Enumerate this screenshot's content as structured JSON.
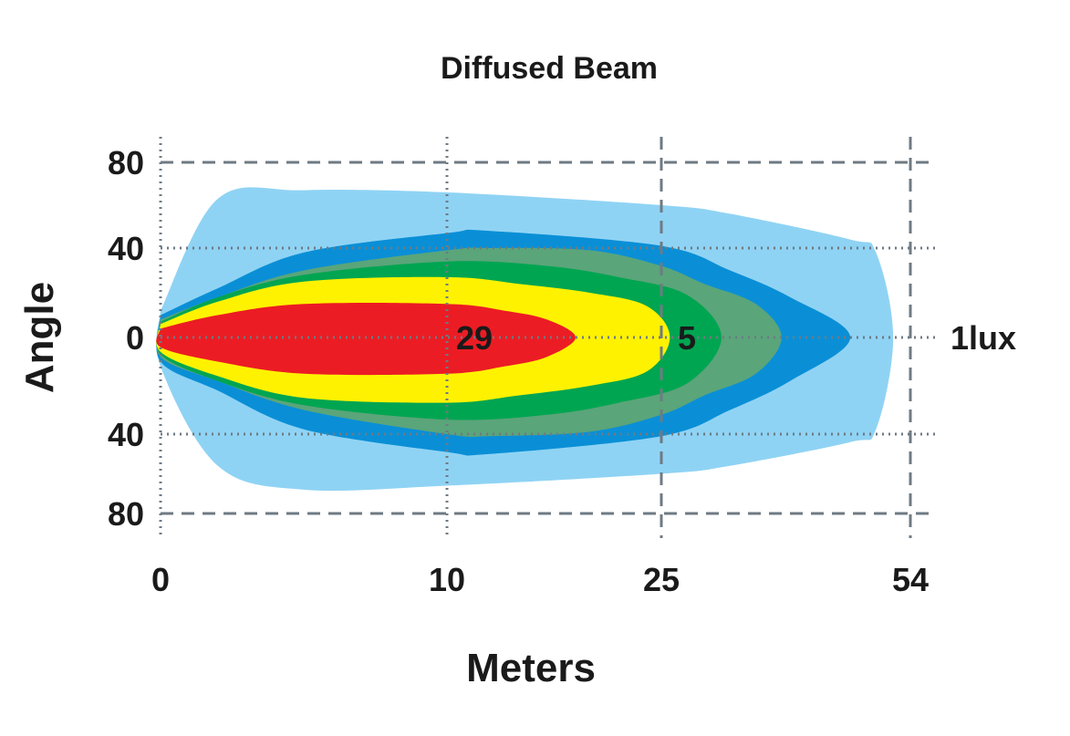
{
  "chart_data": {
    "type": "area",
    "title": "Diffused Beam",
    "xlabel": "Meters",
    "ylabel": "Angle",
    "x_ticks": [
      {
        "value": 0,
        "label": "0"
      },
      {
        "value": 10,
        "label": "10"
      },
      {
        "value": 25,
        "label": "25"
      },
      {
        "value": 54,
        "label": "54"
      }
    ],
    "y_ticks": [
      {
        "value": 80,
        "label": "80"
      },
      {
        "value": 40,
        "label": "40"
      },
      {
        "value": 0,
        "label": "0"
      },
      {
        "value": -40,
        "label": "40"
      },
      {
        "value": -80,
        "label": "80"
      }
    ],
    "xlim": [
      0,
      54
    ],
    "ylim": [
      -80,
      80
    ],
    "grid": true,
    "annotations": [
      {
        "text": "29",
        "x": 10,
        "y": 0
      },
      {
        "text": "5",
        "x": 25,
        "y": 0
      },
      {
        "text": "1lux",
        "x": 54,
        "y": 0,
        "placement": "right-outside"
      }
    ],
    "zones": [
      {
        "color": "#8fd3f4",
        "max_x": 52,
        "upper": [
          [
            0,
            12
          ],
          [
            2,
            63
          ],
          [
            5,
            67
          ],
          [
            10,
            66
          ],
          [
            25,
            60
          ],
          [
            33,
            56
          ],
          [
            47,
            44
          ],
          [
            50,
            38
          ],
          [
            52,
            0
          ]
        ],
        "lower": [
          [
            0,
            -12
          ],
          [
            2,
            -56
          ],
          [
            5,
            -68
          ],
          [
            10,
            -66
          ],
          [
            25,
            -60
          ],
          [
            33,
            -56
          ],
          [
            47,
            -44
          ],
          [
            50,
            -38
          ],
          [
            52,
            0
          ]
        ]
      },
      {
        "color": "#0a8fd6",
        "max_x": 47,
        "upper": [
          [
            0,
            10
          ],
          [
            2,
            22
          ],
          [
            5,
            38
          ],
          [
            10,
            47
          ],
          [
            13,
            48
          ],
          [
            25,
            41
          ],
          [
            33,
            30
          ],
          [
            40,
            18
          ],
          [
            47,
            0
          ]
        ],
        "lower": [
          [
            0,
            -10
          ],
          [
            2,
            -22
          ],
          [
            5,
            -38
          ],
          [
            10,
            -49
          ],
          [
            13,
            -50
          ],
          [
            25,
            -41
          ],
          [
            33,
            -30
          ],
          [
            40,
            -18
          ],
          [
            47,
            0
          ]
        ]
      },
      {
        "color": "#5aa57a",
        "max_x": 39,
        "upper": [
          [
            0,
            8
          ],
          [
            2,
            18
          ],
          [
            5,
            30
          ],
          [
            10,
            39
          ],
          [
            13,
            40
          ],
          [
            20,
            39
          ],
          [
            25,
            32
          ],
          [
            30,
            24
          ],
          [
            36,
            15
          ],
          [
            39,
            0
          ]
        ],
        "lower": [
          [
            0,
            -8
          ],
          [
            2,
            -18
          ],
          [
            5,
            -30
          ],
          [
            10,
            -40
          ],
          [
            13,
            -41
          ],
          [
            20,
            -39
          ],
          [
            25,
            -32
          ],
          [
            30,
            -24
          ],
          [
            36,
            -15
          ],
          [
            39,
            0
          ]
        ]
      },
      {
        "color": "#00a551",
        "max_x": 32,
        "upper": [
          [
            0,
            7
          ],
          [
            2,
            18
          ],
          [
            5,
            28
          ],
          [
            10,
            34
          ],
          [
            17,
            32
          ],
          [
            22,
            27
          ],
          [
            28,
            19
          ],
          [
            32,
            0
          ]
        ],
        "lower": [
          [
            0,
            -7
          ],
          [
            2,
            -18
          ],
          [
            5,
            -28
          ],
          [
            10,
            -34
          ],
          [
            17,
            -32
          ],
          [
            22,
            -27
          ],
          [
            28,
            -19
          ],
          [
            32,
            0
          ]
        ]
      },
      {
        "color": "#fff200",
        "max_x": 26,
        "upper": [
          [
            0,
            6
          ],
          [
            2,
            16
          ],
          [
            5,
            25
          ],
          [
            10,
            27
          ],
          [
            15,
            24
          ],
          [
            20,
            20
          ],
          [
            24,
            14
          ],
          [
            26,
            0
          ]
        ],
        "lower": [
          [
            0,
            -6
          ],
          [
            2,
            -16
          ],
          [
            5,
            -25
          ],
          [
            10,
            -27
          ],
          [
            15,
            -24
          ],
          [
            20,
            -20
          ],
          [
            24,
            -14
          ],
          [
            26,
            0
          ]
        ]
      },
      {
        "color": "#ec1c24",
        "max_x": 19,
        "upper": [
          [
            0,
            4
          ],
          [
            2,
            10
          ],
          [
            5,
            15
          ],
          [
            10,
            15
          ],
          [
            14,
            12
          ],
          [
            17,
            8
          ],
          [
            19,
            0
          ]
        ],
        "lower": [
          [
            0,
            -4
          ],
          [
            2,
            -10
          ],
          [
            5,
            -15
          ],
          [
            10,
            -15
          ],
          [
            14,
            -12
          ],
          [
            17,
            -8
          ],
          [
            19,
            0
          ]
        ]
      }
    ]
  }
}
